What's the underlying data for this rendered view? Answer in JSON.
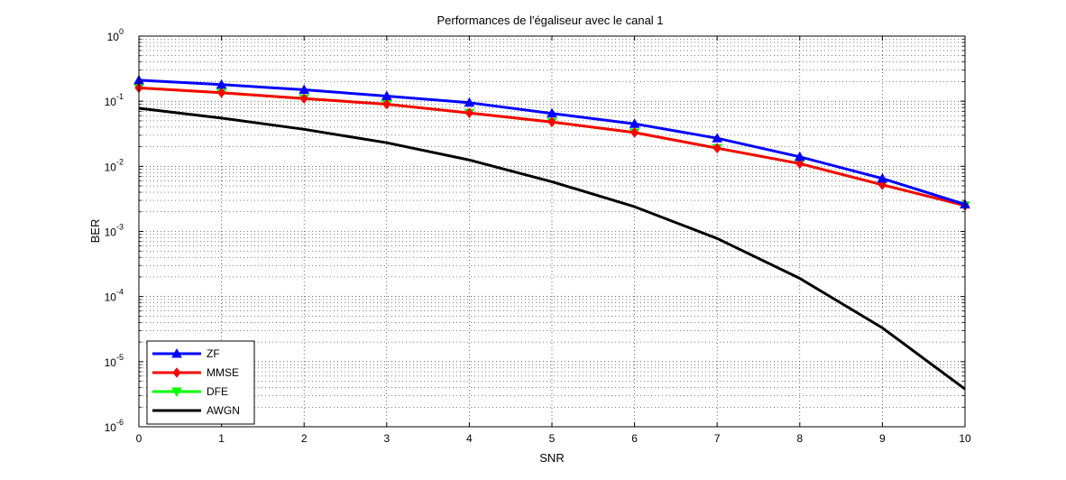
{
  "chart_data": {
    "type": "line",
    "title": "Performances de l'égaliseur avec le canal 1",
    "xlabel": "SNR",
    "ylabel": "BER",
    "xlim": [
      0,
      10
    ],
    "ylim": [
      1e-06,
      1
    ],
    "yscale": "log",
    "grid": true,
    "legend_position": "bottom-left",
    "x": [
      0,
      1,
      2,
      3,
      4,
      5,
      6,
      7,
      8,
      9,
      10
    ],
    "x_ticks": [
      "0",
      "1",
      "2",
      "3",
      "4",
      "5",
      "6",
      "7",
      "8",
      "9",
      "10"
    ],
    "y_ticks": [
      {
        "base": "10",
        "exp": "0"
      },
      {
        "base": "10",
        "exp": "-1"
      },
      {
        "base": "10",
        "exp": "-2"
      },
      {
        "base": "10",
        "exp": "-3"
      },
      {
        "base": "10",
        "exp": "-4"
      },
      {
        "base": "10",
        "exp": "-5"
      },
      {
        "base": "10",
        "exp": "-6"
      }
    ],
    "series": [
      {
        "name": "ZF",
        "color": "#0000ff",
        "marker": "triangle-up",
        "values": [
          0.21,
          0.18,
          0.15,
          0.12,
          0.095,
          0.065,
          0.045,
          0.027,
          0.014,
          0.0065,
          0.0026
        ]
      },
      {
        "name": "MMSE",
        "color": "#ff0000",
        "marker": "diamond",
        "values": [
          0.16,
          0.135,
          0.11,
          0.09,
          0.066,
          0.048,
          0.033,
          0.019,
          0.011,
          0.0052,
          0.0025
        ]
      },
      {
        "name": "DFE",
        "color": "#00ff00",
        "marker": "triangle-down",
        "values": [
          0.16,
          0.135,
          0.11,
          0.09,
          0.066,
          0.048,
          0.033,
          0.019,
          0.011,
          0.0052,
          0.0025
        ]
      },
      {
        "name": "AWGN",
        "color": "#000000",
        "marker": "none",
        "values": [
          0.078,
          0.055,
          0.037,
          0.023,
          0.0125,
          0.0058,
          0.0024,
          0.00078,
          0.00019,
          3.3e-05,
          3.8e-06
        ]
      }
    ]
  }
}
